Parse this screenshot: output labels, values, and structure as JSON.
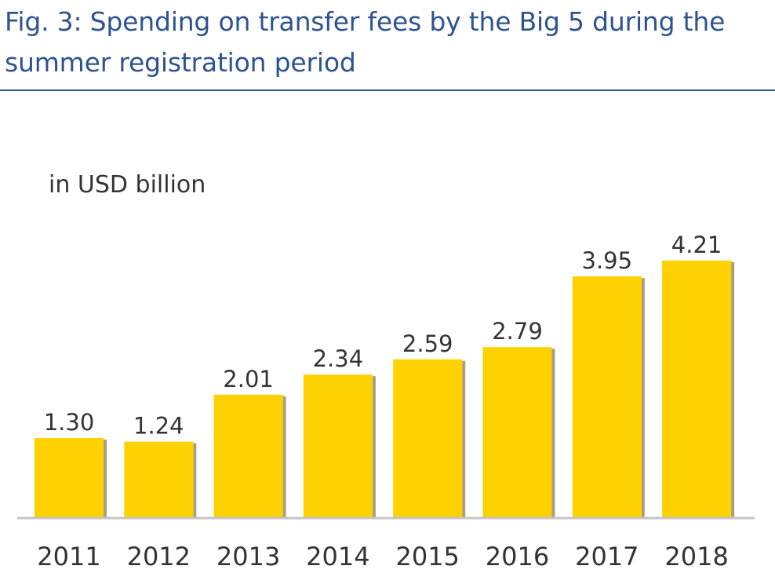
{
  "chart_data": {
    "type": "bar",
    "title": "Fig. 3: Spending on transfer fees by the Big 5 during the summer registration period",
    "unit_label": "in USD billion",
    "categories": [
      "2011",
      "2012",
      "2013",
      "2014",
      "2015",
      "2016",
      "2017",
      "2018"
    ],
    "values": [
      1.3,
      1.24,
      2.01,
      2.34,
      2.59,
      2.79,
      3.95,
      4.21
    ],
    "value_labels": [
      "1.30",
      "1.24",
      "2.01",
      "2.34",
      "2.59",
      "2.79",
      "3.95",
      "4.21"
    ],
    "xlabel": "",
    "ylabel": "",
    "ylim": [
      0,
      5.3
    ],
    "grid": false,
    "legend": "none",
    "colors": {
      "bar": "#fed100",
      "bar_shadow": "#a99f7c",
      "baseline": "#c4c4c4",
      "title": "#2f5390",
      "text": "#333333"
    }
  }
}
